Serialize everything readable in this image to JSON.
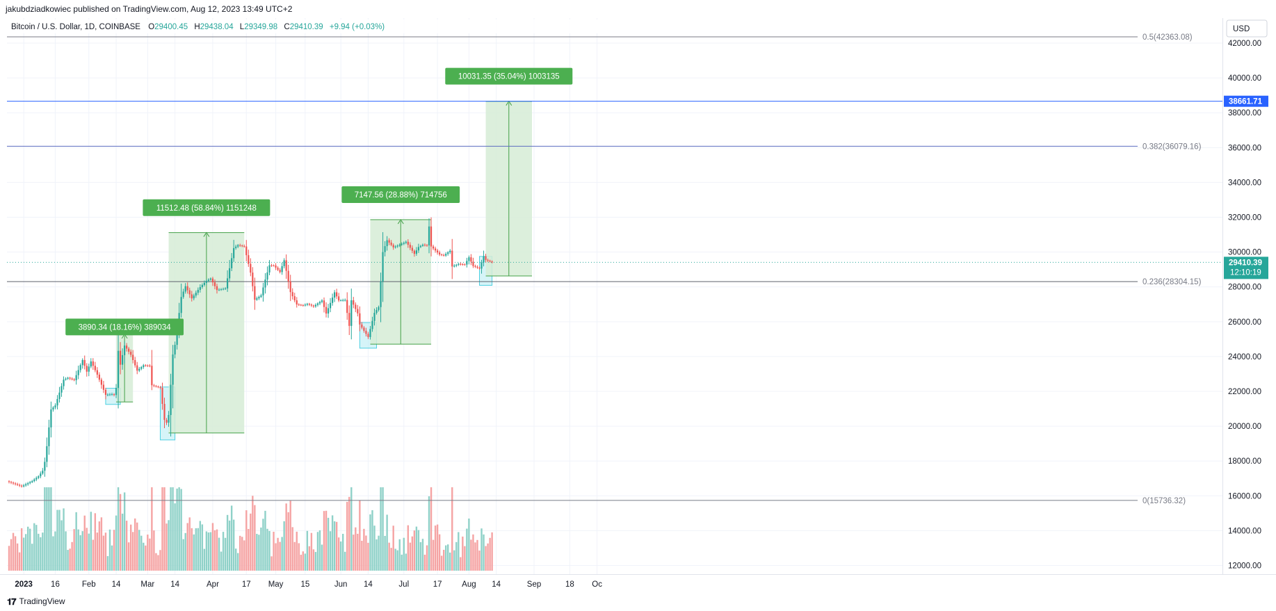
{
  "header": {
    "published": "jakubdziadkowiec published on TradingView.com, Aug 12, 2023 13:49 UTC+2"
  },
  "legend": {
    "symbol": "Bitcoin / U.S. Dollar, 1D, COINBASE",
    "o_label": "O",
    "o_value": "29400.45",
    "h_label": "H",
    "h_value": "29438.04",
    "l_label": "L",
    "l_value": "29349.98",
    "c_label": "C",
    "c_value": "29410.39",
    "change": "+9.94 (+0.03%)"
  },
  "currency_button": "USD",
  "footer": {
    "brand": "TradingView"
  },
  "colors": {
    "up": "#26a69a",
    "down": "#ef5350",
    "vol_up": "#8fd1c8",
    "vol_down": "#f5a3a3",
    "fib": "#787b86",
    "hline": "#2962ff",
    "range_fill": "#d6ecd6",
    "range_line": "#43a047",
    "label_bg": "#4caf50",
    "price_dotted": "#26a69a"
  },
  "chart_data": {
    "type": "candlestick",
    "y_ticks": [
      "42000.00",
      "40000.00",
      "38000.00",
      "36000.00",
      "34000.00",
      "32000.00",
      "30000.00",
      "28000.00",
      "26000.00",
      "24000.00",
      "22000.00",
      "20000.00",
      "18000.00",
      "16000.00",
      "14000.00",
      "12000.00"
    ],
    "y_range": [
      11500,
      43200
    ],
    "x_ticks": [
      {
        "label": "2023",
        "date": "2023-01-01",
        "bold": true
      },
      {
        "label": "16",
        "date": "2023-01-16"
      },
      {
        "label": "Feb",
        "date": "2023-02-01"
      },
      {
        "label": "14",
        "date": "2023-02-14"
      },
      {
        "label": "Mar",
        "date": "2023-03-01"
      },
      {
        "label": "14",
        "date": "2023-03-14"
      },
      {
        "label": "Apr",
        "date": "2023-04-01"
      },
      {
        "label": "17",
        "date": "2023-04-17"
      },
      {
        "label": "May",
        "date": "2023-05-01"
      },
      {
        "label": "15",
        "date": "2023-05-15"
      },
      {
        "label": "Jun",
        "date": "2023-06-01"
      },
      {
        "label": "14",
        "date": "2023-06-14"
      },
      {
        "label": "Jul",
        "date": "2023-07-01"
      },
      {
        "label": "17",
        "date": "2023-07-17"
      },
      {
        "label": "Aug",
        "date": "2023-08-01"
      },
      {
        "label": "14",
        "date": "2023-08-14"
      },
      {
        "label": "Sep",
        "date": "2023-09-01"
      },
      {
        "label": "18",
        "date": "2023-09-18"
      },
      {
        "label": "Oc",
        "date": "2023-10-01"
      }
    ],
    "close_anchors": [
      [
        "2022-12-24",
        16840
      ],
      [
        "2022-12-31",
        16540
      ],
      [
        "2023-01-05",
        16850
      ],
      [
        "2023-01-08",
        17120
      ],
      [
        "2023-01-10",
        17440
      ],
      [
        "2023-01-11",
        17950
      ],
      [
        "2023-01-12",
        18850
      ],
      [
        "2023-01-13",
        19930
      ],
      [
        "2023-01-14",
        20960
      ],
      [
        "2023-01-16",
        21190
      ],
      [
        "2023-01-20",
        22670
      ],
      [
        "2023-01-22",
        22780
      ],
      [
        "2023-01-25",
        22640
      ],
      [
        "2023-01-29",
        23800
      ],
      [
        "2023-01-31",
        23130
      ],
      [
        "2023-02-02",
        23720
      ],
      [
        "2023-02-05",
        22960
      ],
      [
        "2023-02-09",
        21800
      ],
      [
        "2023-02-12",
        21840
      ],
      [
        "2023-02-13",
        21790
      ],
      [
        "2023-02-14",
        22200
      ],
      [
        "2023-02-15",
        24330
      ],
      [
        "2023-02-16",
        23530
      ],
      [
        "2023-02-18",
        24630
      ],
      [
        "2023-02-21",
        24100
      ],
      [
        "2023-02-24",
        23190
      ],
      [
        "2023-02-27",
        23500
      ],
      [
        "2023-03-02",
        23470
      ],
      [
        "2023-03-03",
        22350
      ],
      [
        "2023-03-07",
        22200
      ],
      [
        "2023-03-09",
        20360
      ],
      [
        "2023-03-10",
        20200
      ],
      [
        "2023-03-11",
        20640
      ],
      [
        "2023-03-13",
        24120
      ],
      [
        "2023-03-14",
        24670
      ],
      [
        "2023-03-17",
        27420
      ],
      [
        "2023-03-19",
        28040
      ],
      [
        "2023-03-22",
        27340
      ],
      [
        "2023-03-26",
        27990
      ],
      [
        "2023-03-29",
        28350
      ],
      [
        "2023-03-31",
        28480
      ],
      [
        "2023-04-03",
        27820
      ],
      [
        "2023-04-07",
        27910
      ],
      [
        "2023-04-10",
        29650
      ],
      [
        "2023-04-11",
        30230
      ],
      [
        "2023-04-13",
        30400
      ],
      [
        "2023-04-16",
        30320
      ],
      [
        "2023-04-19",
        28820
      ],
      [
        "2023-04-21",
        27260
      ],
      [
        "2023-04-24",
        27510
      ],
      [
        "2023-04-26",
        28420
      ],
      [
        "2023-04-28",
        29240
      ],
      [
        "2023-04-30",
        29230
      ],
      [
        "2023-05-03",
        28850
      ],
      [
        "2023-05-05",
        29530
      ],
      [
        "2023-05-08",
        27700
      ],
      [
        "2023-05-11",
        26990
      ],
      [
        "2023-05-14",
        26930
      ],
      [
        "2023-05-16",
        27030
      ],
      [
        "2023-05-19",
        26880
      ],
      [
        "2023-05-23",
        27220
      ],
      [
        "2023-05-25",
        26470
      ],
      [
        "2023-05-29",
        27690
      ],
      [
        "2023-05-31",
        27220
      ],
      [
        "2023-06-03",
        27250
      ],
      [
        "2023-06-05",
        25760
      ],
      [
        "2023-06-06",
        27230
      ],
      [
        "2023-06-09",
        26480
      ],
      [
        "2023-06-10",
        25840
      ],
      [
        "2023-06-14",
        25120
      ],
      [
        "2023-06-15",
        25580
      ],
      [
        "2023-06-17",
        26510
      ],
      [
        "2023-06-19",
        26840
      ],
      [
        "2023-06-20",
        28310
      ],
      [
        "2023-06-21",
        30000
      ],
      [
        "2023-06-23",
        30680
      ],
      [
        "2023-06-26",
        30270
      ],
      [
        "2023-06-30",
        30470
      ],
      [
        "2023-07-02",
        30590
      ],
      [
        "2023-07-06",
        29900
      ],
      [
        "2023-07-08",
        30290
      ],
      [
        "2023-07-10",
        30420
      ],
      [
        "2023-07-12",
        30380
      ],
      [
        "2023-07-13",
        31470
      ],
      [
        "2023-07-14",
        30320
      ],
      [
        "2023-07-18",
        29860
      ],
      [
        "2023-07-20",
        29800
      ],
      [
        "2023-07-23",
        30080
      ],
      [
        "2023-07-24",
        29170
      ],
      [
        "2023-07-27",
        29320
      ],
      [
        "2023-07-30",
        29280
      ],
      [
        "2023-08-01",
        29700
      ],
      [
        "2023-08-03",
        29200
      ],
      [
        "2023-08-06",
        29050
      ],
      [
        "2023-08-08",
        29760
      ],
      [
        "2023-08-09",
        29550
      ],
      [
        "2023-08-12",
        29410
      ]
    ],
    "last_price": "29410.39",
    "countdown": "12:10:19",
    "horizontal_line": {
      "price": 38661.71,
      "label": "38661.71"
    },
    "fib_levels": [
      {
        "price": 42363.08,
        "label": "0.5(42363.08)"
      },
      {
        "price": 36079.16,
        "label": "0.382(36079.16)"
      },
      {
        "price": 28304.15,
        "label": "0.236(28304.15)"
      },
      {
        "price": 15736.32,
        "label": "0(15736.32)"
      }
    ],
    "ranges": [
      {
        "start": "2023-02-14",
        "end": "2023-02-22",
        "low": 21390,
        "high": 25280,
        "label": "3890.34 (18.16%) 389034",
        "label_price": 25700
      },
      {
        "start": "2023-03-11",
        "end": "2023-04-16",
        "low": 19610,
        "high": 31120,
        "label": "11512.48 (58.84%) 1151248",
        "label_price": 32550
      },
      {
        "start": "2023-06-15",
        "end": "2023-07-14",
        "low": 24710,
        "high": 31860,
        "label": "7147.56 (28.88%) 714756",
        "label_price": 33300
      },
      {
        "start": "2023-08-09",
        "end": "2023-08-31",
        "low": 28630,
        "high": 38661,
        "label": "10031.35 (35.04%) 1003135",
        "label_price": 40100
      }
    ],
    "highlight_boxes": [
      {
        "start": "2023-02-09",
        "end": "2023-02-16",
        "low": 21250,
        "high": 22180
      },
      {
        "start": "2023-03-07",
        "end": "2023-03-14",
        "low": 19210,
        "high": 22250
      },
      {
        "start": "2023-06-10",
        "end": "2023-06-18",
        "low": 24480,
        "high": 25950
      },
      {
        "start": "2023-08-06",
        "end": "2023-08-12",
        "low": 28090,
        "high": 29750
      }
    ]
  }
}
